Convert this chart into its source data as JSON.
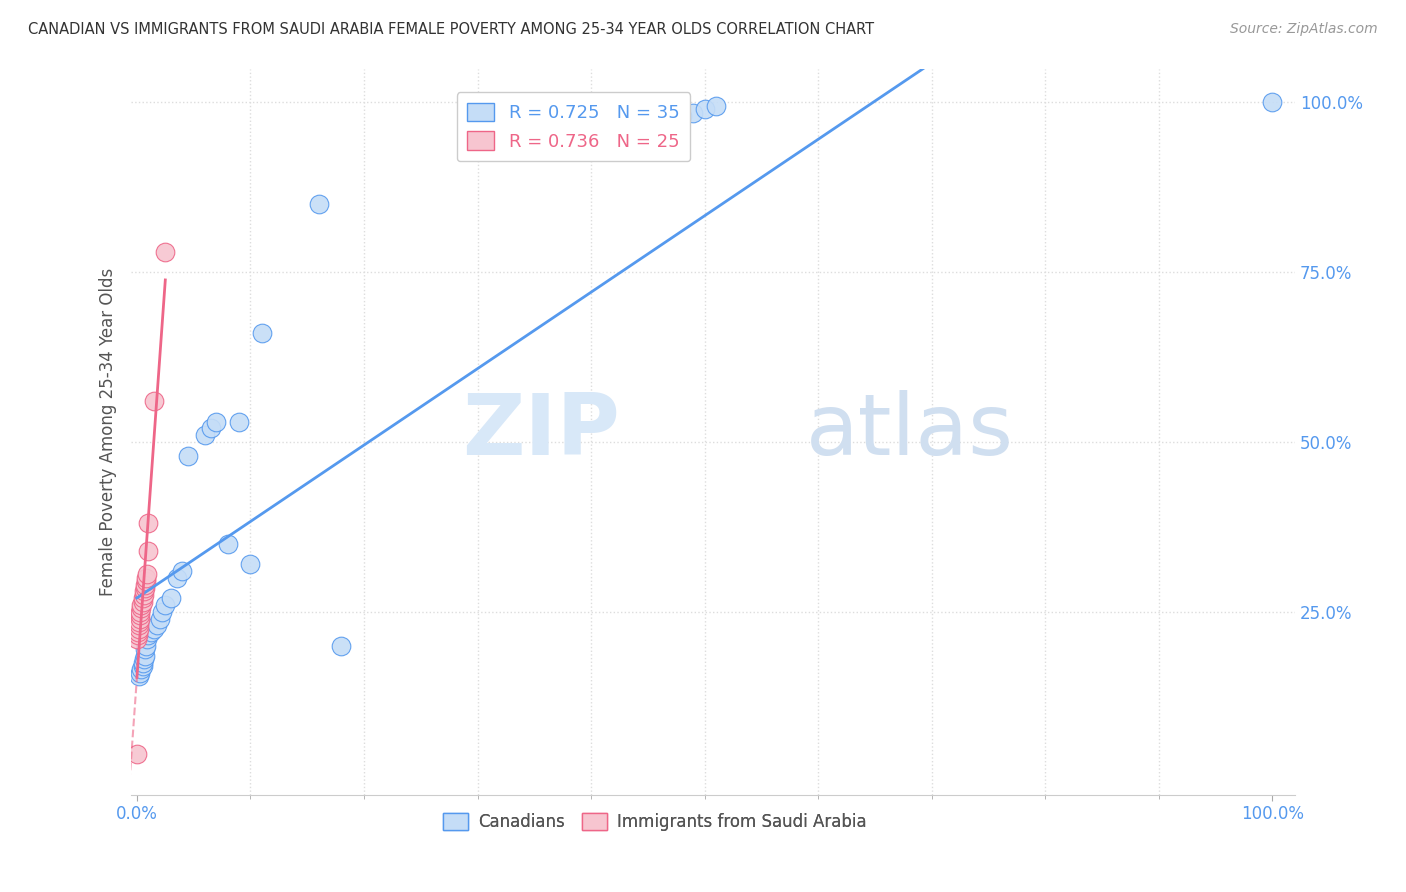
{
  "title": "CANADIAN VS IMMIGRANTS FROM SAUDI ARABIA FEMALE POVERTY AMONG 25-34 YEAR OLDS CORRELATION CHART",
  "source": "Source: ZipAtlas.com",
  "ylabel": "Female Poverty Among 25-34 Year Olds",
  "background_color": "#ffffff",
  "grid_color": "#dddddd",
  "canadians_color": "#c5ddf7",
  "saudi_color": "#f7c5d0",
  "blue_line_color": "#5599ee",
  "pink_line_color": "#ee6688",
  "legend_blue_text": "R = 0.725   N = 35",
  "legend_pink_text": "R = 0.736   N = 25",
  "watermark_zip": "ZIP",
  "watermark_atlas": "atlas",
  "xlim": [
    -0.005,
    1.02
  ],
  "ylim": [
    -0.02,
    1.05
  ],
  "canadians_x": [
    0.002,
    0.003,
    0.004,
    0.005,
    0.005,
    0.006,
    0.007,
    0.007,
    0.008,
    0.009,
    0.01,
    0.012,
    0.015,
    0.018,
    0.02,
    0.022,
    0.025,
    0.03,
    0.035,
    0.04,
    0.045,
    0.06,
    0.065,
    0.07,
    0.08,
    0.09,
    0.1,
    0.11,
    0.16,
    0.18,
    0.48,
    0.49,
    0.5,
    0.51,
    1.0
  ],
  "canadians_y": [
    0.155,
    0.16,
    0.165,
    0.17,
    0.175,
    0.18,
    0.185,
    0.195,
    0.2,
    0.21,
    0.215,
    0.22,
    0.225,
    0.23,
    0.24,
    0.25,
    0.26,
    0.27,
    0.3,
    0.31,
    0.48,
    0.51,
    0.52,
    0.53,
    0.35,
    0.53,
    0.32,
    0.66,
    0.85,
    0.2,
    0.98,
    0.985,
    0.99,
    0.995,
    1.0
  ],
  "saudi_x": [
    0.0,
    0.0,
    0.001,
    0.001,
    0.002,
    0.002,
    0.002,
    0.003,
    0.003,
    0.003,
    0.004,
    0.004,
    0.005,
    0.005,
    0.006,
    0.006,
    0.007,
    0.007,
    0.008,
    0.008,
    0.009,
    0.01,
    0.01,
    0.015,
    0.025
  ],
  "saudi_y": [
    0.04,
    0.21,
    0.215,
    0.22,
    0.225,
    0.23,
    0.235,
    0.24,
    0.245,
    0.25,
    0.255,
    0.26,
    0.265,
    0.27,
    0.275,
    0.28,
    0.285,
    0.29,
    0.295,
    0.3,
    0.305,
    0.34,
    0.38,
    0.56,
    0.78
  ]
}
